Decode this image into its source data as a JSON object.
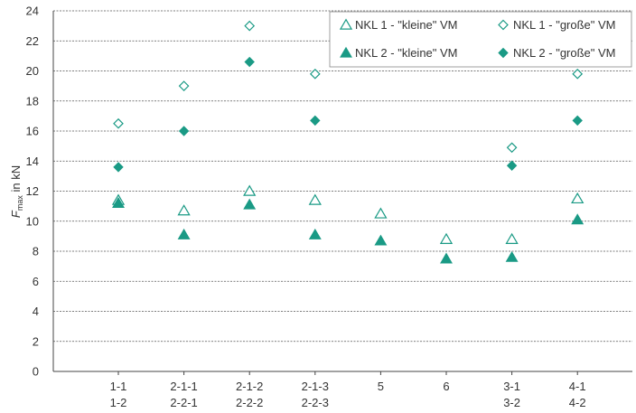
{
  "chart_data": {
    "type": "scatter",
    "categories": [
      [
        "1-1",
        "1-2"
      ],
      [
        "2-1-1",
        "2-2-1"
      ],
      [
        "2-1-2",
        "2-2-2"
      ],
      [
        "2-1-3",
        "2-2-3"
      ],
      [
        "5"
      ],
      [
        "6"
      ],
      [
        "3-1",
        "3-2"
      ],
      [
        "4-1",
        "4-2"
      ]
    ],
    "ylabel_main": "F",
    "ylabel_sub": "max",
    "ylabel_rest": " in kN",
    "ylim": [
      0,
      24
    ],
    "yticks": [
      0,
      2,
      4,
      6,
      8,
      10,
      12,
      14,
      16,
      18,
      20,
      22,
      24
    ],
    "grid": true,
    "legend_position": "top-right",
    "color": "#1a9a85",
    "series": [
      {
        "name": "NKL 1 - \"kleine\" VM",
        "marker": "triangle-open",
        "values": [
          11.4,
          10.7,
          12.0,
          11.4,
          10.5,
          8.8,
          8.8,
          11.5
        ]
      },
      {
        "name": "NKL 1 - \"große\" VM",
        "marker": "diamond-open",
        "values": [
          16.5,
          19.0,
          23.0,
          19.8,
          null,
          null,
          14.9,
          19.8
        ]
      },
      {
        "name": "NKL 2 - \"kleine\" VM",
        "marker": "triangle-filled",
        "values": [
          11.2,
          9.1,
          11.1,
          9.1,
          8.7,
          7.5,
          7.6,
          10.1
        ]
      },
      {
        "name": "NKL 2 - \"große\" VM",
        "marker": "diamond-filled",
        "values": [
          13.6,
          16.0,
          20.6,
          16.7,
          null,
          null,
          13.7,
          16.7
        ]
      }
    ]
  }
}
